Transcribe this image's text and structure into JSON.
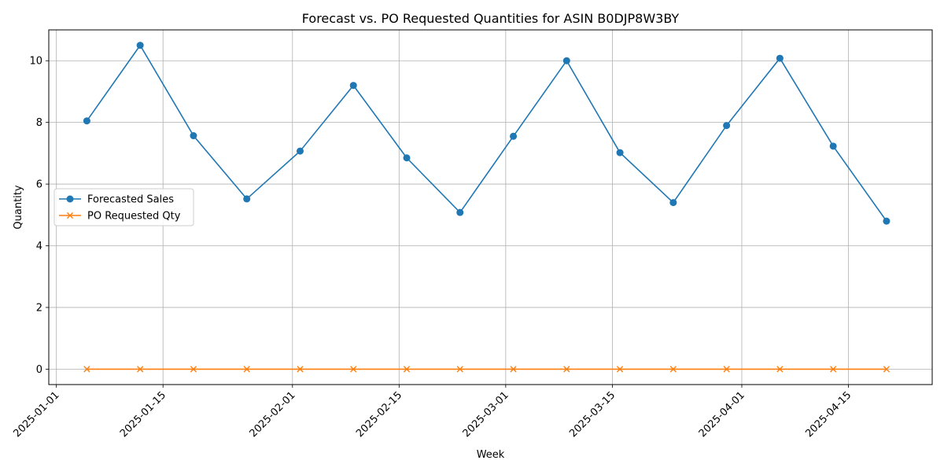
{
  "chart_data": {
    "type": "line",
    "title": "Forecast vs. PO Requested Quantities for ASIN B0DJP8W3BY",
    "xlabel": "Week",
    "ylabel": "Quantity",
    "x": [
      "2025-01-05",
      "2025-01-12",
      "2025-01-19",
      "2025-01-26",
      "2025-02-02",
      "2025-02-09",
      "2025-02-16",
      "2025-02-23",
      "2025-03-02",
      "2025-03-09",
      "2025-03-16",
      "2025-03-23",
      "2025-03-30",
      "2025-04-06",
      "2025-04-13",
      "2025-04-20"
    ],
    "xticks": [
      "2025-01-01",
      "2025-01-15",
      "2025-02-01",
      "2025-02-15",
      "2025-03-01",
      "2025-03-15",
      "2025-04-01",
      "2025-04-15"
    ],
    "xlim": [
      "2024-12-31",
      "2025-04-26"
    ],
    "yticks": [
      0,
      2,
      4,
      6,
      8,
      10
    ],
    "ylim": [
      -0.5,
      11.0
    ],
    "grid": true,
    "legend_position": "center-left",
    "series": [
      {
        "name": "Forecasted Sales",
        "color": "#1f77b4",
        "marker": "circle",
        "values": [
          8.05,
          10.5,
          7.57,
          5.52,
          7.07,
          9.2,
          6.85,
          5.08,
          7.55,
          10.0,
          7.02,
          5.4,
          7.9,
          10.08,
          7.23,
          4.8
        ]
      },
      {
        "name": "PO Requested Qty",
        "color": "#ff7f0e",
        "marker": "x",
        "values": [
          0,
          0,
          0,
          0,
          0,
          0,
          0,
          0,
          0,
          0,
          0,
          0,
          0,
          0,
          0,
          0
        ]
      }
    ]
  }
}
